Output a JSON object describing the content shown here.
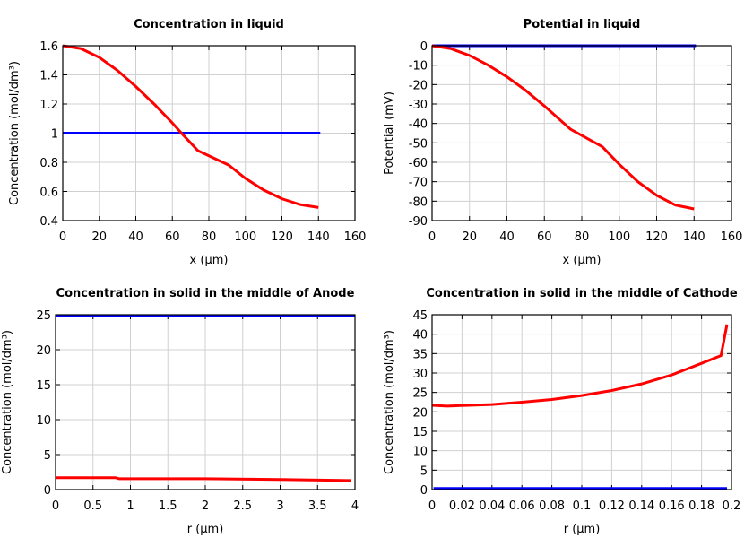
{
  "chart_data": [
    {
      "type": "line",
      "title": "Concentration in liquid",
      "xlabel": "x (µm)",
      "ylabel": "Concentration (mol/dm³)",
      "xlim": [
        0,
        160
      ],
      "ylim": [
        0.4,
        1.6
      ],
      "xticks": [
        0,
        20,
        40,
        60,
        80,
        100,
        120,
        140,
        160
      ],
      "yticks": [
        0.4,
        0.6,
        0.8,
        1,
        1.2,
        1.4,
        1.6
      ],
      "grid": true,
      "series": [
        {
          "color": "#0000ff",
          "x": [
            0,
            141
          ],
          "y": [
            1,
            1
          ]
        },
        {
          "color": "#ff0000",
          "x": [
            0,
            10,
            20,
            30,
            40,
            50,
            60,
            65,
            74,
            91,
            100,
            110,
            120,
            130,
            140
          ],
          "y": [
            1.6,
            1.58,
            1.52,
            1.43,
            1.32,
            1.2,
            1.07,
            1.0,
            0.88,
            0.78,
            0.69,
            0.61,
            0.55,
            0.51,
            0.49
          ]
        }
      ]
    },
    {
      "type": "line",
      "title": "Potential in liquid",
      "xlabel": "x (µm)",
      "ylabel": "Potential (mV)",
      "xlim": [
        0,
        160
      ],
      "ylim": [
        -90,
        0
      ],
      "xticks": [
        0,
        20,
        40,
        60,
        80,
        100,
        120,
        140,
        160
      ],
      "yticks": [
        -90,
        -80,
        -70,
        -60,
        -50,
        -40,
        -30,
        -20,
        -10,
        0
      ],
      "grid": true,
      "series": [
        {
          "color": "#0000ff",
          "x": [
            0,
            141
          ],
          "y": [
            0,
            0
          ]
        },
        {
          "color": "#ff0000",
          "x": [
            0,
            10,
            20,
            30,
            40,
            50,
            60,
            74,
            91,
            100,
            110,
            120,
            130,
            140
          ],
          "y": [
            0,
            -1.5,
            -5,
            -10,
            -16,
            -23,
            -31,
            -43,
            -52,
            -61,
            -70,
            -77,
            -82,
            -84
          ]
        }
      ]
    },
    {
      "type": "line",
      "title": "Concentration in solid in the middle of Anode",
      "xlabel": "r (µm)",
      "ylabel": "Concentration (mol/dm³)",
      "xlim": [
        0,
        4
      ],
      "ylim": [
        0,
        25
      ],
      "xticks": [
        0,
        0.5,
        1,
        1.5,
        2,
        2.5,
        3,
        3.5,
        4
      ],
      "yticks": [
        0,
        5,
        10,
        15,
        20,
        25
      ],
      "grid": true,
      "series": [
        {
          "color": "#0000ff",
          "x": [
            0,
            4
          ],
          "y": [
            24.8,
            24.8
          ]
        },
        {
          "color": "#ff0000",
          "x": [
            0,
            0.8,
            0.85,
            1.5,
            2,
            3,
            3.95
          ],
          "y": [
            1.7,
            1.7,
            1.55,
            1.55,
            1.55,
            1.45,
            1.3
          ]
        }
      ]
    },
    {
      "type": "line",
      "title": "Concentration in solid in the middle of Cathode",
      "xlabel": "r (µm)",
      "ylabel": "Concentration (mol/dm³)",
      "xlim": [
        0,
        0.2
      ],
      "ylim": [
        0,
        45
      ],
      "xticks": [
        0,
        0.02,
        0.04,
        0.06,
        0.08,
        0.1,
        0.12,
        0.14,
        0.16,
        0.18,
        0.2
      ],
      "yticks": [
        0,
        5,
        10,
        15,
        20,
        25,
        30,
        35,
        40,
        45
      ],
      "grid": true,
      "series": [
        {
          "color": "#0000ff",
          "x": [
            0.001,
            0.197
          ],
          "y": [
            0.3,
            0.3
          ]
        },
        {
          "color": "#ff0000",
          "x": [
            0,
            0.01,
            0.04,
            0.06,
            0.08,
            0.1,
            0.12,
            0.14,
            0.16,
            0.18,
            0.193,
            0.197
          ],
          "y": [
            21.7,
            21.5,
            21.9,
            22.5,
            23.2,
            24.2,
            25.5,
            27.2,
            29.5,
            32.5,
            34.5,
            42.5
          ]
        }
      ]
    }
  ]
}
